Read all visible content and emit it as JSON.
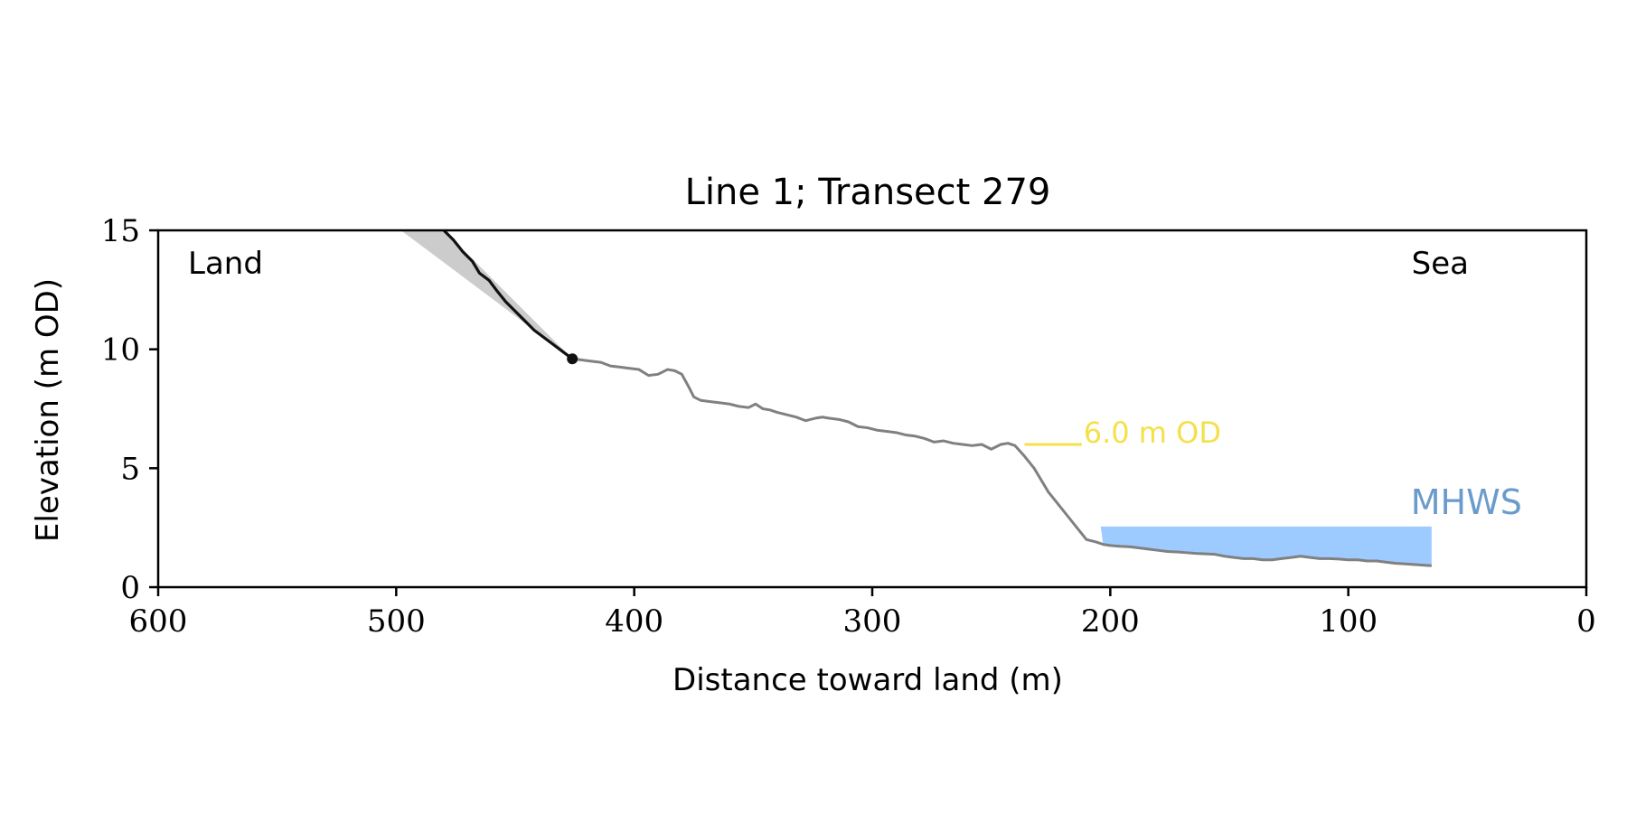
{
  "chart_data": {
    "type": "line",
    "title": "Line 1; Transect 279",
    "xlabel": "Distance toward land (m)",
    "ylabel": "Elevation (m OD)",
    "xlim": [
      600,
      0
    ],
    "ylim": [
      0,
      15
    ],
    "x_ticks": [
      600,
      500,
      400,
      300,
      200,
      100,
      0
    ],
    "y_ticks": [
      0,
      5,
      10,
      15
    ],
    "grid": false,
    "corner_labels": {
      "left": "Land",
      "right": "Sea"
    },
    "colors": {
      "cliff": "#111111",
      "profile": "#808080",
      "wedge": "#cccccc",
      "marker": "#111111",
      "contour": "#f5e04a",
      "mhws_fill": "#9ecbff",
      "mhws_text": "#6b9bcc",
      "axis": "#000000"
    },
    "series": [
      {
        "role": "cliff",
        "x": [
          480,
          476,
          472,
          468,
          465,
          461,
          458,
          454,
          450,
          446,
          442,
          438,
          434,
          430,
          426
        ],
        "y": [
          15.0,
          14.6,
          14.1,
          13.7,
          13.2,
          12.9,
          12.5,
          12.0,
          11.6,
          11.2,
          10.8,
          10.5,
          10.2,
          9.9,
          9.6
        ]
      },
      {
        "role": "profile",
        "x": [
          426,
          422,
          418,
          414,
          410,
          406,
          402,
          398,
          394,
          390,
          386,
          383,
          380,
          377,
          375,
          372,
          368,
          364,
          360,
          356,
          352,
          349,
          346,
          343,
          340,
          336,
          332,
          328,
          324,
          321,
          318,
          314,
          310,
          306,
          302,
          298,
          294,
          290,
          286,
          282,
          278,
          274,
          270,
          266,
          262,
          258,
          254,
          250,
          246,
          243,
          240,
          236,
          232,
          229,
          226,
          222,
          218,
          214,
          210,
          206,
          203,
          200,
          196,
          192,
          188,
          184,
          180,
          176,
          172,
          168,
          164,
          160,
          156,
          152,
          148,
          144,
          140,
          136,
          132,
          128,
          124,
          120,
          116,
          112,
          108,
          104,
          100,
          96,
          92,
          88,
          84,
          80,
          76,
          72,
          68,
          65
        ],
        "y": [
          9.6,
          9.55,
          9.5,
          9.45,
          9.3,
          9.25,
          9.2,
          9.15,
          8.9,
          8.95,
          9.15,
          9.1,
          8.95,
          8.4,
          8.0,
          7.85,
          7.8,
          7.75,
          7.7,
          7.6,
          7.55,
          7.7,
          7.5,
          7.45,
          7.35,
          7.25,
          7.15,
          7.0,
          7.1,
          7.15,
          7.1,
          7.05,
          6.95,
          6.75,
          6.7,
          6.6,
          6.55,
          6.5,
          6.4,
          6.35,
          6.25,
          6.1,
          6.15,
          6.05,
          6.0,
          5.95,
          6.0,
          5.8,
          6.0,
          6.05,
          5.95,
          5.5,
          5.0,
          4.5,
          4.0,
          3.5,
          3.0,
          2.5,
          2.0,
          1.9,
          1.8,
          1.75,
          1.72,
          1.7,
          1.65,
          1.6,
          1.55,
          1.5,
          1.48,
          1.45,
          1.42,
          1.4,
          1.38,
          1.3,
          1.25,
          1.2,
          1.2,
          1.15,
          1.15,
          1.2,
          1.25,
          1.3,
          1.25,
          1.2,
          1.2,
          1.18,
          1.15,
          1.15,
          1.1,
          1.1,
          1.05,
          1.0,
          0.98,
          0.95,
          0.92,
          0.9
        ]
      }
    ],
    "cliff_top": {
      "x": 426,
      "y": 9.6
    },
    "wedge": {
      "x": [
        498,
        480,
        426
      ],
      "y": [
        15,
        15,
        9.6
      ]
    },
    "contour": {
      "label": "6.0 m OD",
      "elevation": 6.0,
      "x_start": 236,
      "x_end": 212
    },
    "mhws": {
      "label": "MHWS",
      "elevation": 2.55,
      "x_start": 204,
      "x_end": 65
    }
  }
}
